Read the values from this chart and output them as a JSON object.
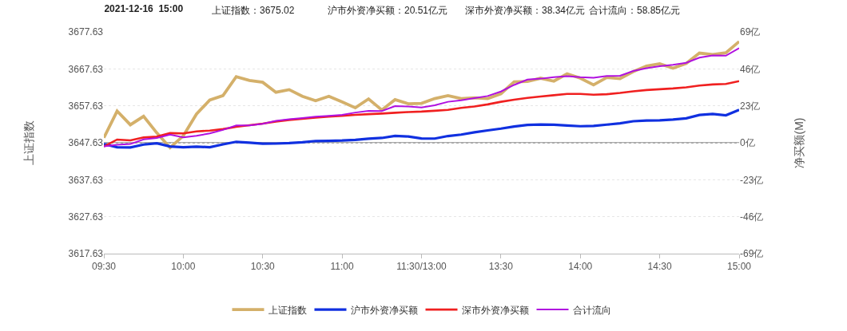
{
  "chart_data": {
    "type": "line",
    "title": "2021-12-16  15:00",
    "annotations": [
      "上证指数：3675.02",
      "沪市外资净买额：20.51亿元",
      "深市外资净买额：38.34亿元",
      "合计流向：58.85亿元"
    ],
    "ylabel": "上证指数",
    "y2label": "净买额(M)",
    "categories": [
      "09:30",
      null,
      null,
      null,
      null,
      null,
      "10:00",
      null,
      null,
      null,
      null,
      null,
      "10:30",
      null,
      null,
      null,
      null,
      null,
      "11:00",
      null,
      null,
      null,
      null,
      null,
      "11:30/13:00",
      null,
      null,
      null,
      null,
      null,
      "13:30",
      null,
      null,
      null,
      null,
      null,
      "14:00",
      null,
      null,
      null,
      null,
      null,
      "14:30",
      null,
      null,
      null,
      null,
      null,
      "15:00"
    ],
    "ylim": [
      3617.63,
      3677.63
    ],
    "yticks": [
      3617.63,
      3627.63,
      3637.63,
      3647.63,
      3657.63,
      3667.63,
      3677.63
    ],
    "y2lim": [
      -69,
      69
    ],
    "y2ticks": [
      {
        "value": -69,
        "label": "-69亿"
      },
      {
        "value": -46,
        "label": "-46亿"
      },
      {
        "value": -23,
        "label": "-23亿"
      },
      {
        "value": 0,
        "label": "0亿"
      },
      {
        "value": 23,
        "label": "23亿"
      },
      {
        "value": 46,
        "label": "46亿"
      },
      {
        "value": 69,
        "label": "69亿"
      }
    ],
    "grid": "y",
    "legend": "bottom",
    "ref_lines": [
      {
        "axis": "y2",
        "value": 0,
        "color": "#555555"
      }
    ],
    "series": [
      {
        "name": "上证指数",
        "color": "#d4b06a",
        "values": [
          3649.0,
          3656.2,
          3652.5,
          3654.8,
          3650.3,
          3646.3,
          3649.5,
          3655.4,
          3659.2,
          3660.4,
          3665.5,
          3664.5,
          3664.0,
          3661.3,
          3662.0,
          3660.2,
          3659.0,
          3660.2,
          3658.7,
          3657.1,
          3659.5,
          3656.5,
          3659.3,
          3658.2,
          3658.3,
          3659.6,
          3660.4,
          3659.6,
          3659.8,
          3659.6,
          3660.9,
          3664.1,
          3664.2,
          3665.1,
          3664.3,
          3666.3,
          3665.1,
          3663.3,
          3665.3,
          3665.0,
          3666.9,
          3668.4,
          3669.0,
          3667.8,
          3669.1,
          3671.9,
          3671.5,
          3672.0,
          3675.02
        ]
      },
      {
        "name": "沪市外资净买额",
        "color": "#1030e0",
        "axis": "y2",
        "values": [
          -0.8,
          -2.8,
          -2.9,
          -1.1,
          -0.3,
          -2.3,
          -2.8,
          -2.4,
          -2.8,
          -1.0,
          0.6,
          0.1,
          -0.6,
          -0.5,
          -0.2,
          0.3,
          1.1,
          1.2,
          1.4,
          1.8,
          2.5,
          3.0,
          4.3,
          3.9,
          2.7,
          2.6,
          4.2,
          5.1,
          6.5,
          7.7,
          8.8,
          10.1,
          11.1,
          11.4,
          11.2,
          10.7,
          10.3,
          10.5,
          11.3,
          12.1,
          13.4,
          13.8,
          14.0,
          14.5,
          15.2,
          17.3,
          17.9,
          17.1,
          20.51
        ]
      },
      {
        "name": "深市外资净买额",
        "color": "#f02020",
        "axis": "y2",
        "values": [
          -2.3,
          2.0,
          1.5,
          3.3,
          3.8,
          6.0,
          5.8,
          7.1,
          7.6,
          8.5,
          9.9,
          10.9,
          11.9,
          13.2,
          14.2,
          14.9,
          15.6,
          16.3,
          16.8,
          17.4,
          17.8,
          18.2,
          18.7,
          19.1,
          19.4,
          19.9,
          20.5,
          21.7,
          22.6,
          23.9,
          25.5,
          26.8,
          27.9,
          28.8,
          29.6,
          30.4,
          30.4,
          29.9,
          30.2,
          31.0,
          32.0,
          32.8,
          33.3,
          33.8,
          34.5,
          35.6,
          36.3,
          36.6,
          38.34
        ]
      },
      {
        "name": "合计流向",
        "color": "#b010e0",
        "axis": "y2",
        "values": [
          -2.3,
          -1.2,
          -0.8,
          2.1,
          3.0,
          5.1,
          3.4,
          4.4,
          5.8,
          8.0,
          10.8,
          10.8,
          11.8,
          13.6,
          14.6,
          15.4,
          16.3,
          16.8,
          17.4,
          18.8,
          19.8,
          19.7,
          22.8,
          22.6,
          22.0,
          23.3,
          25.5,
          26.4,
          27.8,
          29.1,
          31.9,
          36.0,
          39.3,
          39.9,
          40.8,
          41.5,
          40.8,
          40.5,
          41.6,
          41.7,
          44.7,
          46.4,
          47.6,
          48.5,
          49.8,
          53.0,
          54.4,
          54.2,
          58.85
        ]
      }
    ]
  }
}
